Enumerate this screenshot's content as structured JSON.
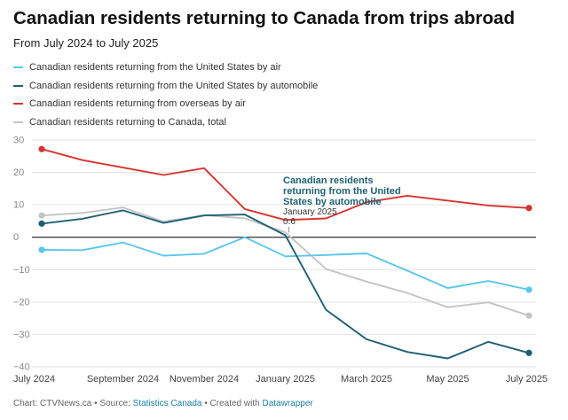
{
  "chart_data": {
    "type": "line",
    "title": "Canadian residents returning to Canada from trips abroad",
    "subtitle": "From July 2024 to July 2025",
    "x": [
      "2024-07",
      "2024-08",
      "2024-09",
      "2024-10",
      "2024-11",
      "2024-12",
      "2025-01",
      "2025-02",
      "2025-03",
      "2025-04",
      "2025-05",
      "2025-06",
      "2025-07"
    ],
    "x_tick_labels": [
      "July 2024",
      "September 2024",
      "November 2024",
      "January 2025",
      "March 2025",
      "May 2025",
      "July 2025"
    ],
    "ylim": [
      -40,
      30
    ],
    "y_ticks": [
      30,
      20,
      10,
      0,
      -10,
      -20,
      -30,
      -40
    ],
    "grid": true,
    "legend_position": "top-left",
    "series": [
      {
        "name": "Canadian residents returning from the United States by air",
        "color": "#5bc6ea",
        "values": [
          -3.9,
          -4.0,
          -1.6,
          -5.7,
          -5.1,
          0.0,
          -5.9,
          -5.5,
          -5.0,
          -10.3,
          -15.7,
          -13.5,
          -16.2
        ]
      },
      {
        "name": "Canadian residents returning from the United States by automobile",
        "color": "#1f6173",
        "values": [
          4.2,
          5.7,
          8.3,
          4.4,
          6.7,
          7.0,
          0.6,
          -22.4,
          -31.5,
          -35.4,
          -37.4,
          -32.3,
          -35.7
        ]
      },
      {
        "name": "Canadian residents returning from overseas by air",
        "color": "#d6352e",
        "values": [
          27.2,
          23.8,
          21.5,
          19.2,
          21.3,
          8.7,
          5.3,
          5.8,
          10.8,
          12.8,
          11.3,
          9.8,
          9.0
        ]
      },
      {
        "name": "Canadian residents returning to Canada, total",
        "color": "#c4c4c4",
        "values": [
          6.7,
          7.5,
          9.2,
          4.8,
          6.8,
          5.8,
          1.5,
          -9.8,
          -13.7,
          -17.2,
          -21.6,
          -20.1,
          -24.2
        ]
      }
    ],
    "annotation": {
      "text_lines": [
        "Canadian residents",
        "returning from the United",
        "States by automobile"
      ],
      "date": "January 2025",
      "value": "0.6",
      "color": "#1f6173"
    }
  },
  "footer": {
    "prefix": "Chart: CTVNews.ca • Source: ",
    "source": "Statistics Canada",
    "middle": " • Created with ",
    "tool": "Datawrapper"
  }
}
